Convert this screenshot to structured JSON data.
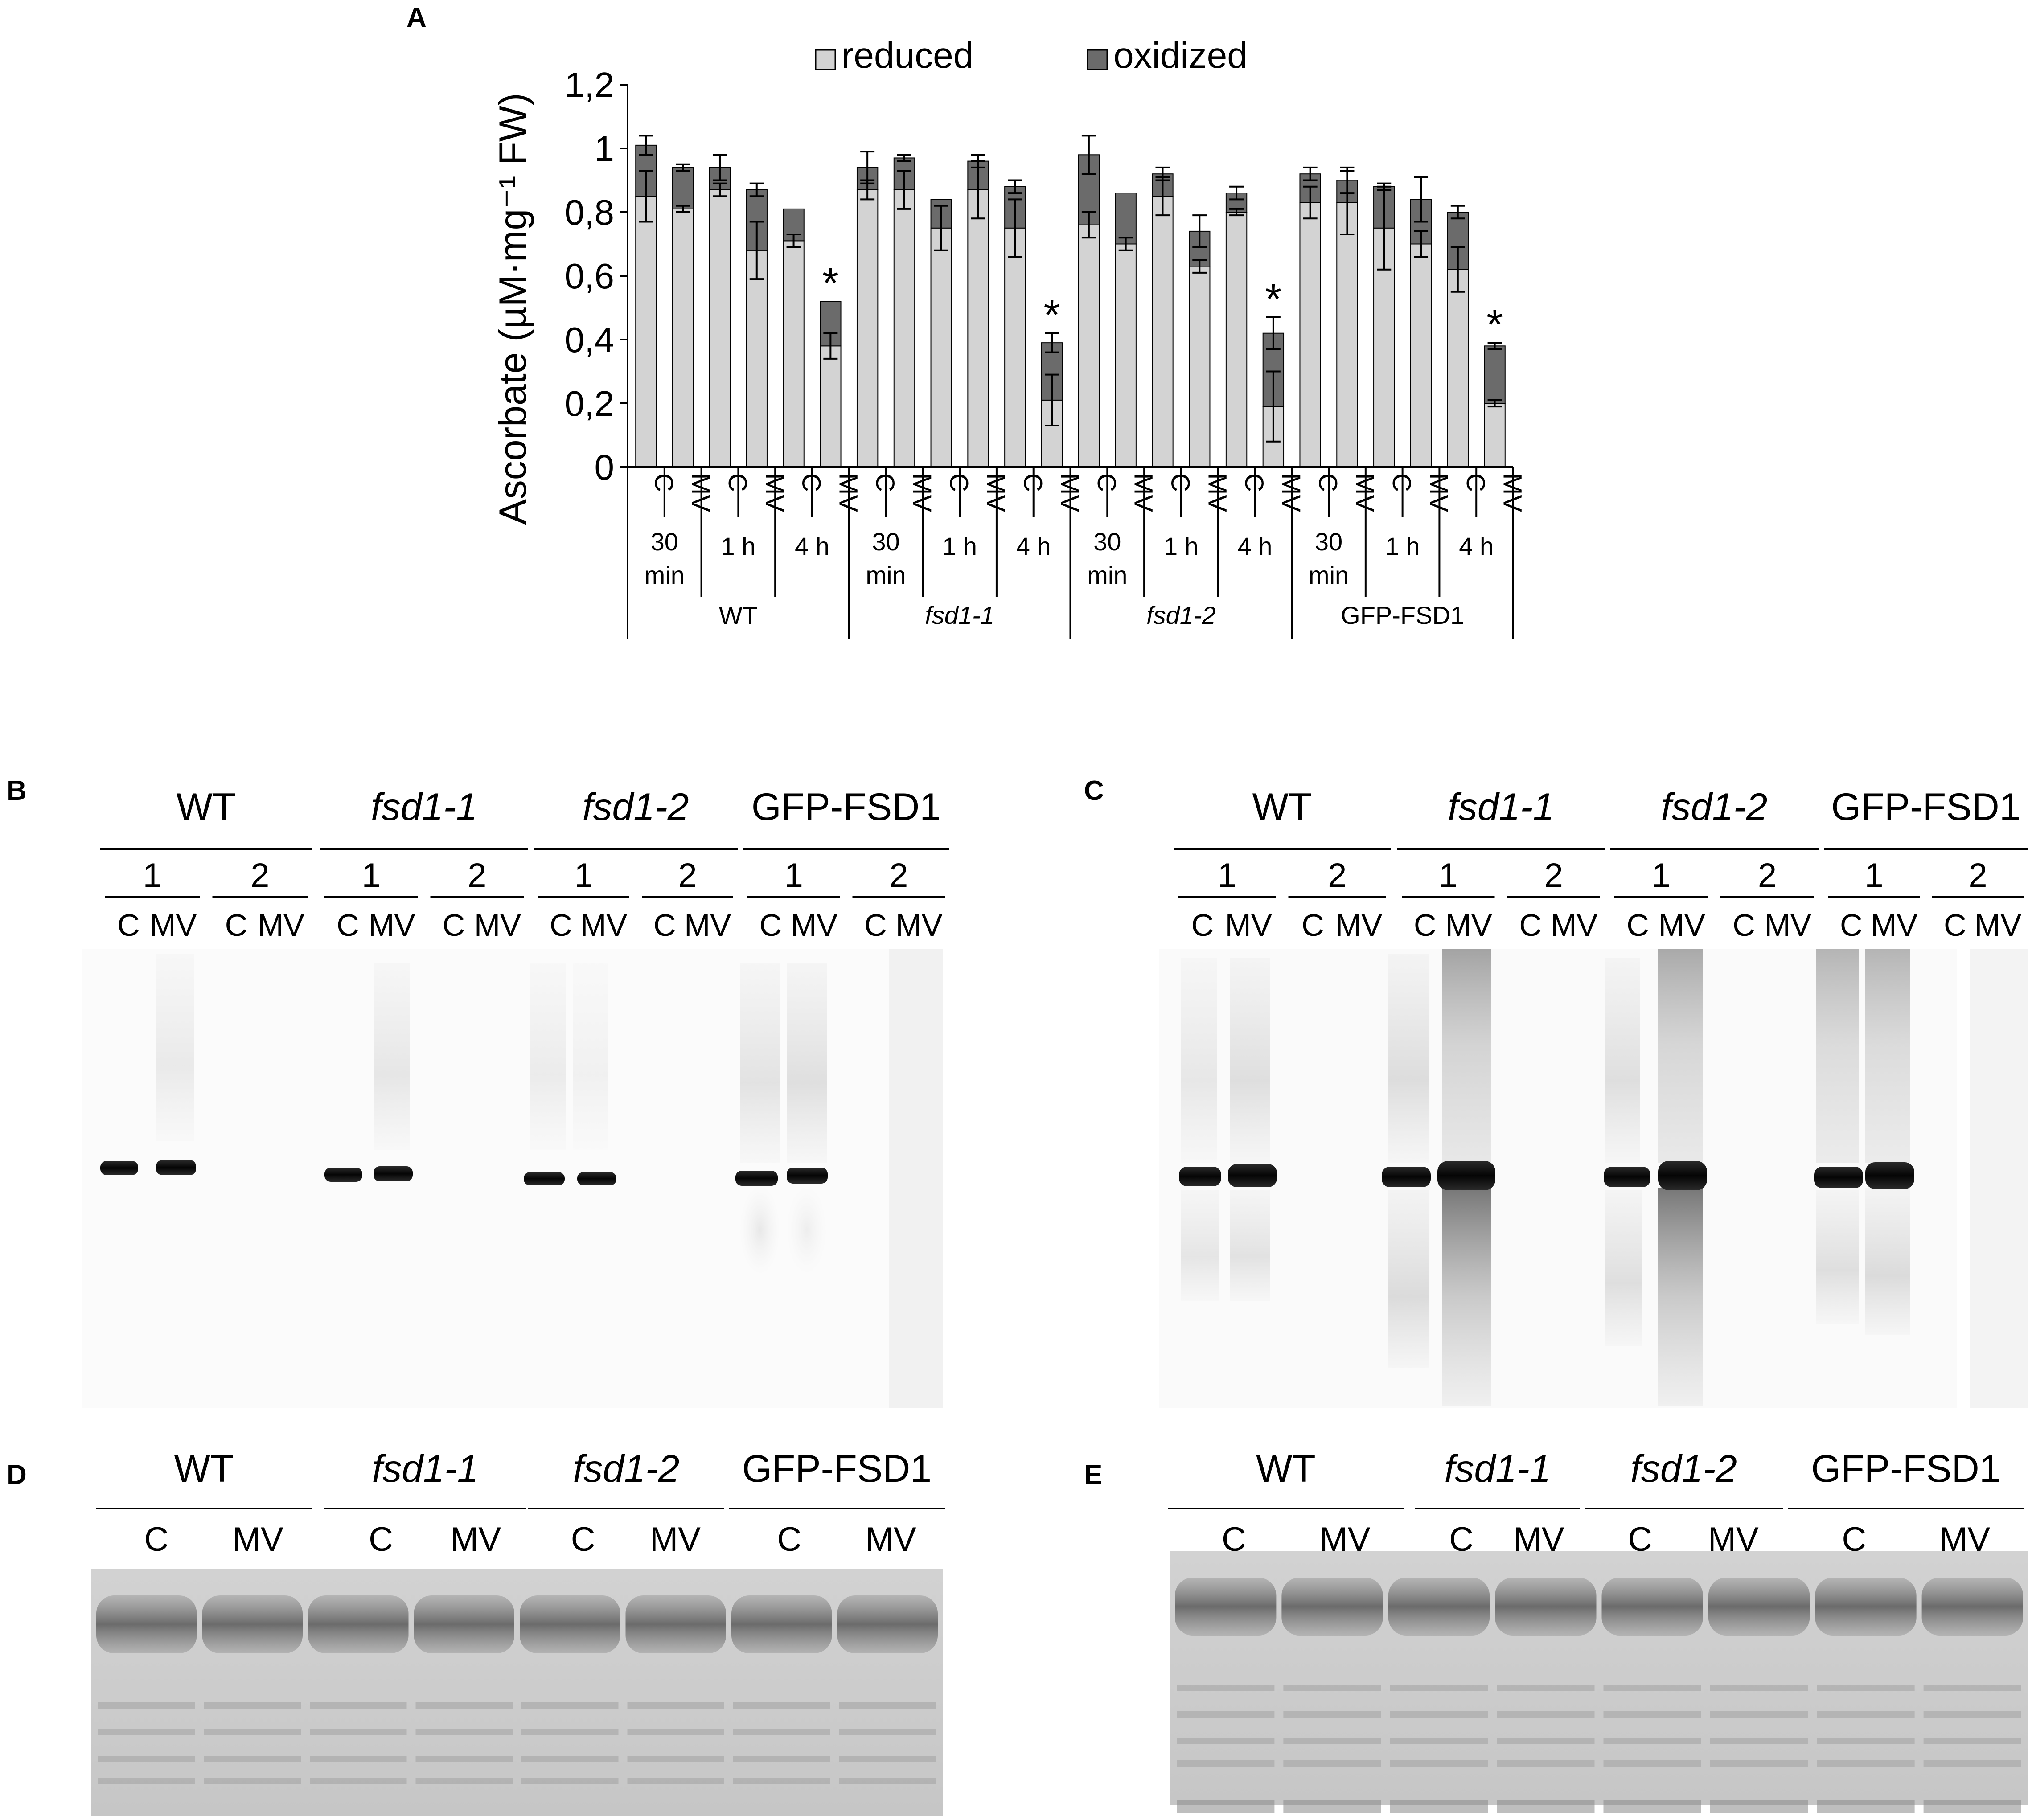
{
  "panel_letters": {
    "a": "A",
    "b": "B",
    "c": "C",
    "d": "D",
    "e": "E"
  },
  "chart_data": {
    "type": "bar",
    "stacked": true,
    "legend": {
      "reduced": "reduced",
      "oxidized": "oxidized",
      "placement": "top"
    },
    "ylabel": "Ascorbate (µM·mg⁻¹ FW)",
    "ylim": [
      0,
      1.2
    ],
    "yticks": [
      "0",
      "0,2",
      "0,4",
      "0,6",
      "0,8",
      "1",
      "1,2"
    ],
    "ytick_values": [
      0,
      0.2,
      0.4,
      0.6,
      0.8,
      1.0,
      1.2
    ],
    "colors": {
      "reduced": "#d3d3d3",
      "oxidized": "#6b6b6b"
    },
    "treatments": [
      "C",
      "MV",
      "C",
      "MV",
      "C",
      "MV",
      "C",
      "MV",
      "C",
      "MV",
      "C",
      "MV",
      "C",
      "MV",
      "C",
      "MV",
      "C",
      "MV",
      "C",
      "MV",
      "C",
      "MV",
      "C",
      "MV"
    ],
    "time_labels": [
      [
        "30",
        "min"
      ],
      [
        "1 h"
      ],
      [
        "4 h"
      ],
      [
        "30",
        "min"
      ],
      [
        "1 h"
      ],
      [
        "4 h"
      ],
      [
        "30",
        "min"
      ],
      [
        "1 h"
      ],
      [
        "4 h"
      ],
      [
        "30",
        "min"
      ],
      [
        "1 h"
      ],
      [
        "4 h"
      ]
    ],
    "genotypes": [
      "WT",
      "fsd1-1",
      "fsd1-2",
      "GFP-FSD1"
    ],
    "genotype_italic": [
      false,
      true,
      true,
      false
    ],
    "series": [
      {
        "name": "reduced",
        "values": [
          0.85,
          0.81,
          0.87,
          0.68,
          0.71,
          0.38,
          0.87,
          0.87,
          0.75,
          0.87,
          0.75,
          0.21,
          0.76,
          0.7,
          0.85,
          0.63,
          0.8,
          0.19,
          0.83,
          0.83,
          0.75,
          0.7,
          0.62,
          0.2
        ]
      },
      {
        "name": "oxidized",
        "values": [
          0.16,
          0.13,
          0.07,
          0.19,
          0.1,
          0.14,
          0.07,
          0.1,
          0.09,
          0.09,
          0.13,
          0.18,
          0.22,
          0.16,
          0.07,
          0.11,
          0.06,
          0.23,
          0.09,
          0.07,
          0.13,
          0.14,
          0.18,
          0.18
        ]
      }
    ],
    "reduced_err": [
      0.08,
      0.01,
      0.02,
      0.09,
      0.02,
      0.04,
      0.03,
      0.06,
      0.07,
      0.09,
      0.09,
      0.08,
      0.04,
      0.02,
      0.06,
      0.02,
      0.01,
      0.11,
      0.05,
      0.1,
      0.13,
      0.04,
      0.07,
      0.01
    ],
    "total_err": [
      0.03,
      0.01,
      0.04,
      0.02,
      0.0,
      0.0,
      0.05,
      0.01,
      0.0,
      0.02,
      0.02,
      0.03,
      0.06,
      0.0,
      0.02,
      0.05,
      0.02,
      0.05,
      0.02,
      0.04,
      0.01,
      0.07,
      0.02,
      0.01
    ],
    "significant": [
      false,
      false,
      false,
      false,
      false,
      true,
      false,
      false,
      false,
      false,
      false,
      true,
      false,
      false,
      false,
      false,
      false,
      true,
      false,
      false,
      false,
      false,
      false,
      true
    ],
    "asterisk": "*"
  },
  "blots": {
    "genotypes": [
      "WT",
      "fsd1-1",
      "fsd1-2",
      "GFP-FSD1"
    ],
    "subgroups": [
      "1",
      "2"
    ],
    "lanes": [
      "C",
      "MV",
      "C",
      "MV"
    ],
    "stain_lanes": [
      "C",
      "MV"
    ]
  }
}
